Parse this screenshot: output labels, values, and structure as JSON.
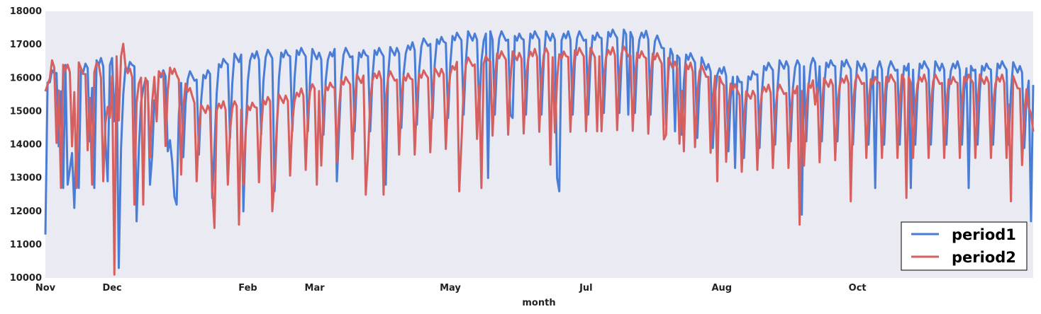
{
  "chart_data": {
    "type": "line",
    "title": "",
    "xlabel": "month",
    "ylabel": "",
    "ylim": [
      10000,
      18000
    ],
    "yticks": [
      10000,
      11000,
      12000,
      13000,
      14000,
      15000,
      16000,
      17000,
      18000
    ],
    "xticks": [
      "Nov",
      "Dec",
      "Feb",
      "Mar",
      "May",
      "Jul",
      "Aug",
      "Oct"
    ],
    "xtick_days": [
      0,
      30,
      91,
      121,
      182,
      243,
      304,
      365
    ],
    "x_range_days": [
      0,
      444
    ],
    "grid": false,
    "legend_position": "bottom-right",
    "colors": {
      "period1": "#4a7dd6",
      "period2": "#d65f5f",
      "background": "#eaeaf2"
    },
    "series": [
      {
        "name": "period1",
        "color": "#4a7dd6",
        "anchors": [
          [
            0,
            12200
          ],
          [
            1,
            16000
          ],
          [
            3,
            16300
          ],
          [
            7,
            16500
          ],
          [
            9,
            16600
          ],
          [
            10,
            12800
          ],
          [
            16,
            16400
          ],
          [
            20,
            16600
          ],
          [
            25,
            16600
          ],
          [
            30,
            16600
          ],
          [
            32,
            16400
          ],
          [
            35,
            16400
          ],
          [
            39,
            16600
          ],
          [
            40,
            16600
          ],
          [
            41,
            14200
          ],
          [
            44,
            15900
          ],
          [
            50,
            16300
          ],
          [
            55,
            16300
          ],
          [
            58,
            12500
          ],
          [
            61,
            16100
          ],
          [
            65,
            16200
          ],
          [
            70,
            16200
          ],
          [
            76,
            16400
          ],
          [
            83,
            16700
          ],
          [
            90,
            16800
          ],
          [
            97,
            16800
          ],
          [
            104,
            16900
          ],
          [
            111,
            16900
          ],
          [
            118,
            16900
          ],
          [
            125,
            16800
          ],
          [
            132,
            16900
          ],
          [
            139,
            16900
          ],
          [
            146,
            16900
          ],
          [
            153,
            16900
          ],
          [
            160,
            17000
          ],
          [
            167,
            17100
          ],
          [
            174,
            17300
          ],
          [
            181,
            17300
          ],
          [
            188,
            17400
          ],
          [
            195,
            17400
          ],
          [
            202,
            17400
          ],
          [
            209,
            17400
          ],
          [
            216,
            17400
          ],
          [
            223,
            17400
          ],
          [
            230,
            17400
          ],
          [
            237,
            17400
          ],
          [
            244,
            17400
          ],
          [
            251,
            17450
          ],
          [
            258,
            17450
          ],
          [
            265,
            17450
          ],
          [
            272,
            17400
          ],
          [
            279,
            17100
          ],
          [
            286,
            16800
          ],
          [
            293,
            16700
          ],
          [
            300,
            16400
          ],
          [
            307,
            16300
          ],
          [
            314,
            16100
          ],
          [
            321,
            16400
          ],
          [
            328,
            16500
          ],
          [
            335,
            16600
          ],
          [
            342,
            16600
          ],
          [
            349,
            16600
          ],
          [
            356,
            16600
          ],
          [
            363,
            16500
          ],
          [
            370,
            16500
          ],
          [
            377,
            16500
          ],
          [
            384,
            16500
          ],
          [
            391,
            16500
          ],
          [
            398,
            16500
          ],
          [
            405,
            16500
          ],
          [
            412,
            16500
          ],
          [
            419,
            16500
          ],
          [
            426,
            16500
          ],
          [
            433,
            16500
          ],
          [
            440,
            16400
          ],
          [
            444,
            16000
          ]
        ],
        "dips": [
          [
            8,
            12700
          ],
          [
            15,
            12700
          ],
          [
            22,
            12700
          ],
          [
            28,
            12900
          ],
          [
            31,
            14700
          ],
          [
            33,
            10300
          ],
          [
            47,
            12800
          ],
          [
            50,
            15000
          ],
          [
            59,
            12200
          ],
          [
            75,
            12400
          ],
          [
            89,
            12000
          ],
          [
            103,
            12600
          ],
          [
            131,
            12900
          ],
          [
            153,
            12800
          ],
          [
            199,
            13000
          ],
          [
            210,
            14800
          ],
          [
            230,
            13000
          ],
          [
            231,
            12600
          ],
          [
            262,
            14900
          ],
          [
            283,
            14400
          ],
          [
            310,
            13300
          ],
          [
            340,
            11900
          ],
          [
            347,
            15300
          ],
          [
            373,
            12700
          ],
          [
            389,
            12700
          ],
          [
            415,
            12700
          ],
          [
            443,
            11700
          ]
        ]
      },
      {
        "name": "period2",
        "color": "#d65f5f",
        "anchors": [
          [
            0,
            15600
          ],
          [
            3,
            16600
          ],
          [
            7,
            16500
          ],
          [
            10,
            16400
          ],
          [
            14,
            16500
          ],
          [
            20,
            16300
          ],
          [
            24,
            16600
          ],
          [
            28,
            15200
          ],
          [
            32,
            16900
          ],
          [
            34,
            17550
          ],
          [
            36,
            16500
          ],
          [
            40,
            16200
          ],
          [
            45,
            16000
          ],
          [
            50,
            16300
          ],
          [
            55,
            16500
          ],
          [
            59,
            16300
          ],
          [
            62,
            16000
          ],
          [
            70,
            15200
          ],
          [
            77,
            15300
          ],
          [
            84,
            15300
          ],
          [
            91,
            15300
          ],
          [
            98,
            15400
          ],
          [
            105,
            15500
          ],
          [
            112,
            15600
          ],
          [
            119,
            15800
          ],
          [
            126,
            15900
          ],
          [
            133,
            16000
          ],
          [
            140,
            16100
          ],
          [
            147,
            16200
          ],
          [
            154,
            16200
          ],
          [
            161,
            16200
          ],
          [
            168,
            16200
          ],
          [
            175,
            16300
          ],
          [
            182,
            16400
          ],
          [
            189,
            16600
          ],
          [
            196,
            16700
          ],
          [
            203,
            16800
          ],
          [
            210,
            16800
          ],
          [
            217,
            16850
          ],
          [
            224,
            16900
          ],
          [
            231,
            16850
          ],
          [
            238,
            16900
          ],
          [
            245,
            16900
          ],
          [
            252,
            16900
          ],
          [
            259,
            16950
          ],
          [
            266,
            16900
          ],
          [
            273,
            16800
          ],
          [
            280,
            16600
          ],
          [
            287,
            16500
          ],
          [
            294,
            16400
          ],
          [
            301,
            16200
          ],
          [
            308,
            15900
          ],
          [
            315,
            15600
          ],
          [
            322,
            15800
          ],
          [
            329,
            15800
          ],
          [
            336,
            15800
          ],
          [
            343,
            15900
          ],
          [
            350,
            16000
          ],
          [
            357,
            16050
          ],
          [
            364,
            16100
          ],
          [
            371,
            16100
          ],
          [
            378,
            16100
          ],
          [
            385,
            16100
          ],
          [
            392,
            16100
          ],
          [
            399,
            16100
          ],
          [
            406,
            16100
          ],
          [
            413,
            16100
          ],
          [
            420,
            16100
          ],
          [
            427,
            16100
          ],
          [
            434,
            16100
          ],
          [
            441,
            15800
          ],
          [
            444,
            14600
          ]
        ],
        "dips": [
          [
            7,
            12700
          ],
          [
            14,
            12700
          ],
          [
            21,
            12800
          ],
          [
            26,
            12900
          ],
          [
            29,
            14800
          ],
          [
            31,
            10100
          ],
          [
            40,
            12200
          ],
          [
            44,
            12200
          ],
          [
            50,
            14700
          ],
          [
            61,
            13100
          ],
          [
            76,
            11500
          ],
          [
            87,
            11600
          ],
          [
            102,
            12000
          ],
          [
            122,
            12800
          ],
          [
            144,
            12500
          ],
          [
            152,
            12500
          ],
          [
            186,
            12600
          ],
          [
            196,
            12700
          ],
          [
            227,
            13400
          ],
          [
            248,
            14400
          ],
          [
            279,
            14300
          ],
          [
            287,
            13800
          ],
          [
            302,
            12900
          ],
          [
            339,
            11600
          ],
          [
            346,
            15200
          ],
          [
            362,
            12300
          ],
          [
            387,
            12400
          ],
          [
            434,
            12300
          ]
        ]
      }
    ]
  }
}
